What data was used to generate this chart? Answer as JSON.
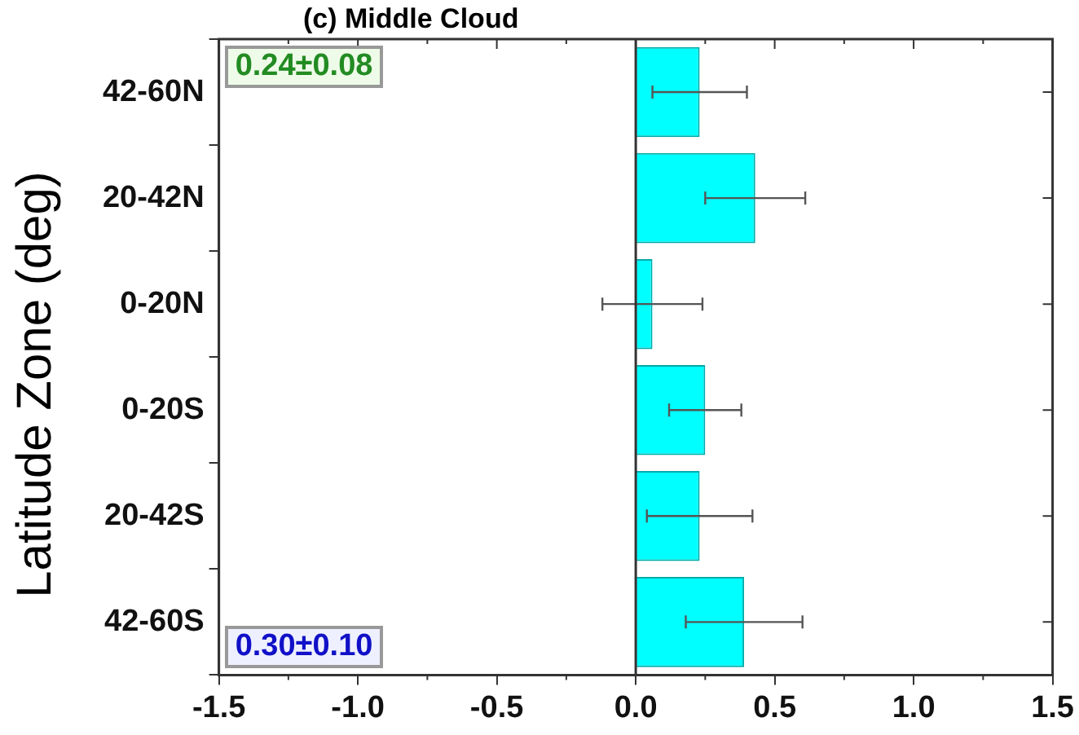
{
  "chart_data": {
    "type": "bar",
    "orientation": "horizontal",
    "title": "(c) Middle Cloud",
    "ylabel": "Latitude Zone (deg)",
    "categories": [
      "42-60N",
      "20-42N",
      "0-20N",
      "0-20S",
      "20-42S",
      "42-60S"
    ],
    "values": [
      0.23,
      0.43,
      0.06,
      0.25,
      0.23,
      0.39
    ],
    "errors": [
      0.17,
      0.18,
      0.18,
      0.13,
      0.19,
      0.21
    ],
    "color": "#00ffff",
    "xlim": [
      -1.5,
      1.5
    ],
    "xticks": [
      -1.5,
      {
        "value": -1,
        "label": "-1.0"
      },
      -0.5,
      {
        "value": 0,
        "label": "0.0"
      },
      0.5,
      {
        "value": 1,
        "label": "1.0"
      },
      1.5
    ],
    "ref_lines": [
      {
        "axis": "x",
        "value": 0
      }
    ],
    "grid": false,
    "legend": false,
    "annotations": [
      "0.24±0.08",
      "0.30±0.10"
    ]
  }
}
